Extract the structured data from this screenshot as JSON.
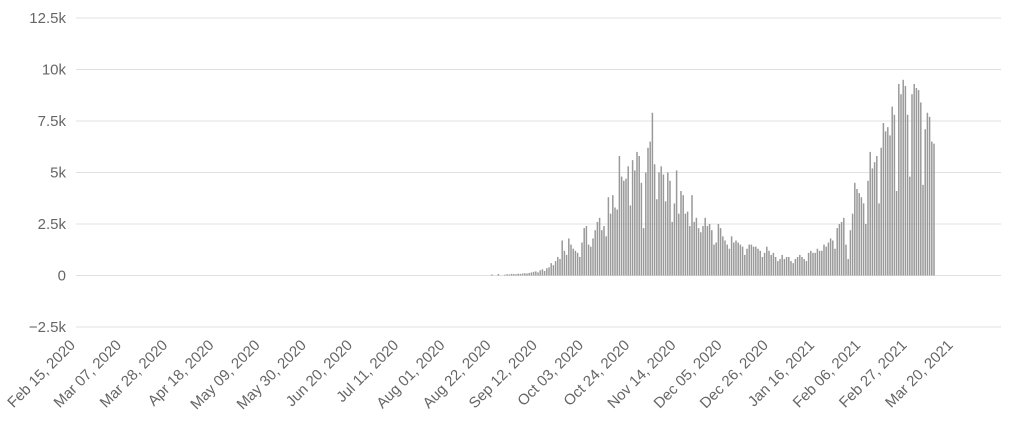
{
  "chart_data": {
    "type": "bar",
    "title": "",
    "xlabel": "",
    "ylabel": "",
    "x_start": "2020-02-15",
    "ylim": [
      -2500,
      12500
    ],
    "y_ticks": [
      -2500,
      0,
      2500,
      5000,
      7500,
      10000,
      12500
    ],
    "y_tick_labels": [
      "−2.5k",
      "0",
      "2.5k",
      "5k",
      "7.5k",
      "10k",
      "12.5k"
    ],
    "x_tick_labels": [
      "Feb 15, 2020",
      "Mar 07, 2020",
      "Mar 28, 2020",
      "Apr 18, 2020",
      "May 09, 2020",
      "May 30, 2020",
      "Jun 20, 2020",
      "Jul 11, 2020",
      "Aug 01, 2020",
      "Aug 22, 2020",
      "Sep 12, 2020",
      "Oct 03, 2020",
      "Oct 24, 2020",
      "Nov 14, 2020",
      "Dec 05, 2020",
      "Dec 26, 2020",
      "Jan 16, 2021",
      "Feb 06, 2021",
      "Feb 27, 2021",
      "Mar 20, 2021"
    ],
    "grid": true,
    "bar_color": "#999999",
    "values": [
      0,
      0,
      0,
      0,
      0,
      0,
      0,
      0,
      0,
      0,
      0,
      0,
      0,
      0,
      0,
      0,
      0,
      0,
      0,
      0,
      0,
      0,
      0,
      0,
      0,
      0,
      0,
      0,
      0,
      0,
      0,
      0,
      0,
      0,
      0,
      0,
      0,
      0,
      0,
      0,
      0,
      0,
      0,
      0,
      0,
      0,
      0,
      0,
      0,
      0,
      0,
      0,
      0,
      0,
      0,
      0,
      0,
      0,
      0,
      0,
      0,
      0,
      0,
      0,
      0,
      0,
      0,
      0,
      0,
      0,
      0,
      0,
      0,
      0,
      0,
      0,
      0,
      0,
      0,
      0,
      0,
      0,
      0,
      0,
      0,
      0,
      0,
      0,
      0,
      0,
      0,
      0,
      0,
      0,
      0,
      0,
      0,
      0,
      0,
      0,
      0,
      0,
      0,
      0,
      0,
      0,
      0,
      0,
      0,
      0,
      0,
      0,
      0,
      0,
      0,
      0,
      0,
      0,
      0,
      0,
      0,
      0,
      0,
      0,
      0,
      0,
      0,
      0,
      0,
      0,
      0,
      0,
      0,
      0,
      0,
      0,
      0,
      0,
      0,
      0,
      0,
      0,
      0,
      0,
      0,
      0,
      0,
      0,
      0,
      0,
      0,
      0,
      0,
      0,
      0,
      0,
      0,
      0,
      0,
      0,
      0,
      0,
      0,
      0,
      0,
      0,
      0,
      0,
      0,
      0,
      0,
      0,
      0,
      0,
      0,
      0,
      0,
      0,
      0,
      0,
      0,
      0,
      0,
      0,
      0,
      0,
      0,
      0,
      0,
      50,
      0,
      0,
      70,
      0,
      0,
      40,
      60,
      50,
      80,
      70,
      60,
      90,
      80,
      100,
      110,
      100,
      120,
      150,
      180,
      200,
      150,
      250,
      300,
      220,
      350,
      400,
      600,
      500,
      700,
      900,
      800,
      1700,
      1200,
      1000,
      1800,
      1500,
      1300,
      1200,
      1100,
      900,
      1600,
      2300,
      2400,
      1500,
      1400,
      1800,
      2200,
      2600,
      2800,
      2200,
      2400,
      1900,
      3800,
      3000,
      3900,
      3300,
      3200,
      5800,
      4800,
      4600,
      4700,
      5300,
      3400,
      5600,
      5100,
      6000,
      5800,
      4500,
      2300,
      5000,
      6200,
      6500,
      7900,
      5400,
      3700,
      5000,
      5300,
      4900,
      3600,
      5000,
      4600,
      2600,
      3500,
      5100,
      3000,
      4100,
      3900,
      3000,
      3100,
      2400,
      3900,
      2600,
      2800,
      2300,
      2100,
      2400,
      2800,
      2400,
      2500,
      2200,
      1500,
      1600,
      2500,
      2300,
      1900,
      1700,
      1500,
      1300,
      1900,
      1600,
      1700,
      1600,
      1500,
      1400,
      1000,
      1300,
      1500,
      1500,
      1400,
      1400,
      1300,
      1200,
      900,
      1100,
      1400,
      1200,
      1000,
      1100,
      900,
      700,
      800,
      1000,
      800,
      900,
      900,
      700,
      600,
      800,
      900,
      1000,
      900,
      800,
      700,
      1100,
      1200,
      1100,
      1100,
      1300,
      1200,
      1200,
      1500,
      1400,
      1600,
      1800,
      1700,
      1300,
      2300,
      2500,
      2600,
      2800,
      1500,
      800,
      2200,
      3000,
      4500,
      4200,
      4000,
      3800,
      3500,
      2500,
      4600,
      6000,
      5200,
      5500,
      5800,
      3500,
      6200,
      7400,
      7000,
      7200,
      6800,
      8200,
      7800,
      4100,
      9300,
      8800,
      9500,
      9200,
      7800,
      4800,
      8800,
      9300,
      9100,
      9000,
      8400,
      4400,
      7100,
      7900,
      7700,
      6500,
      6400
    ]
  }
}
